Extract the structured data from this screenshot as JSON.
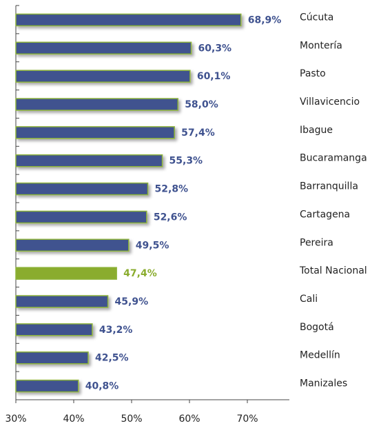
{
  "chart_data": {
    "type": "bar",
    "orientation": "horizontal",
    "categories": [
      "Cúcuta",
      "Montería",
      "Pasto",
      "Villavicencio",
      "Ibague",
      "Bucaramanga",
      "Barranquilla",
      "Cartagena",
      "Pereira",
      "Total Nacional",
      "Cali",
      "Bogotá",
      "Medellín",
      "Manizales"
    ],
    "values": [
      68.9,
      60.3,
      60.1,
      58.0,
      57.4,
      55.3,
      52.8,
      52.6,
      49.5,
      47.4,
      45.9,
      43.2,
      42.5,
      40.8
    ],
    "value_labels": [
      "68,9%",
      "60,3%",
      "60,1%",
      "58,0%",
      "57,4%",
      "55,3%",
      "52,8%",
      "52,6%",
      "49,5%",
      "47,4%",
      "45,9%",
      "43,2%",
      "42,5%",
      "40,8%"
    ],
    "colors": [
      "#3f528f",
      "#3f528f",
      "#3f528f",
      "#3f528f",
      "#3f528f",
      "#3f528f",
      "#3f528f",
      "#3f528f",
      "#3f528f",
      "#8aac2e",
      "#3f528f",
      "#3f528f",
      "#3f528f",
      "#3f528f"
    ],
    "xlim": [
      30,
      70
    ],
    "xticks": [
      {
        "value": 30,
        "label": "30%"
      },
      {
        "value": 40,
        "label": "40%"
      },
      {
        "value": 50,
        "label": "50%"
      },
      {
        "value": 60,
        "label": "60%"
      },
      {
        "value": 70,
        "label": "70%"
      }
    ]
  }
}
